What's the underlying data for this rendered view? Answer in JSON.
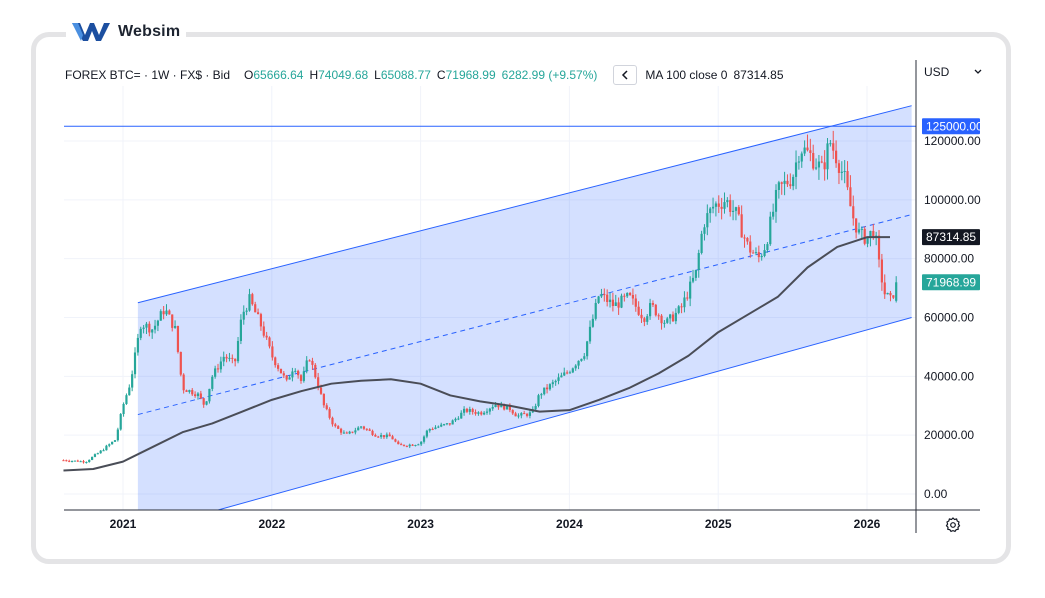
{
  "brand": {
    "name": "Websim",
    "logo_icon": "websim-w-logo-icon",
    "color": "#1c4fa0"
  },
  "legend": {
    "symbol": "FOREX BTC= · 1W · FX$ · Bid",
    "open_label": "O",
    "open": "65666.64",
    "high_label": "H",
    "high": "74049.68",
    "low_label": "L",
    "low": "65088.77",
    "close_label": "C",
    "close": "71968.99",
    "change": "6282.99 (+9.57%)",
    "collapse_icon": "chevron-left-icon",
    "ma_label": "MA 100 close 0",
    "ma_value": "87314.85"
  },
  "axis": {
    "currency": "USD",
    "currency_icon": "chevron-down-icon",
    "settings_icon": "gear-icon"
  },
  "colors": {
    "up": "#26a69a",
    "down": "#ef5350",
    "ma": "#4a4d57",
    "channel_line": "#2962ff",
    "channel_fill": "#2962ff",
    "hline": "#2962ff",
    "close_tag": "#26a69a",
    "ma_tag": "#131722",
    "hline_tag": "#2962ff"
  },
  "chart_data": {
    "type": "candlestick",
    "timeframe": "1W",
    "yaxis_ticks": [
      0,
      20000,
      40000,
      60000,
      80000,
      100000,
      120000
    ],
    "yaxis_tick_labels": [
      "0.00",
      "20000.00",
      "40000.00",
      "60000.00",
      "80000.00",
      "100000.00",
      "120000.00"
    ],
    "xaxis_ticks": [
      2021,
      2022,
      2023,
      2024,
      2025,
      2026
    ],
    "xaxis_tick_labels": [
      "2021",
      "2022",
      "2023",
      "2024",
      "2025",
      "2026"
    ],
    "ylim": [
      -5000,
      135000
    ],
    "xlim": [
      2020.6,
      2026.3
    ],
    "horizontal_line": {
      "value": 125000,
      "label": "125000.00"
    },
    "price_tags": [
      {
        "name": "ma",
        "value": 87314.85,
        "label": "87314.85"
      },
      {
        "name": "close",
        "value": 71968.99,
        "label": "71968.99"
      }
    ],
    "channel": {
      "upper": [
        [
          2021.1,
          65000
        ],
        [
          2026.3,
          132000
        ]
      ],
      "mid": [
        [
          2021.1,
          27000
        ],
        [
          2026.3,
          95000
        ]
      ],
      "lower": [
        [
          2021.1,
          -13000
        ],
        [
          2026.3,
          60000
        ]
      ]
    },
    "price_path": [
      [
        2020.6,
        11500
      ],
      [
        2020.75,
        11000
      ],
      [
        2020.85,
        14500
      ],
      [
        2020.95,
        18500
      ],
      [
        2021.0,
        30000
      ],
      [
        2021.05,
        38000
      ],
      [
        2021.12,
        58000
      ],
      [
        2021.2,
        56000
      ],
      [
        2021.28,
        63000
      ],
      [
        2021.35,
        56000
      ],
      [
        2021.4,
        36000
      ],
      [
        2021.5,
        34000
      ],
      [
        2021.55,
        30000
      ],
      [
        2021.6,
        40000
      ],
      [
        2021.68,
        47000
      ],
      [
        2021.75,
        44000
      ],
      [
        2021.8,
        61000
      ],
      [
        2021.85,
        66000
      ],
      [
        2021.93,
        57000
      ],
      [
        2022.0,
        47000
      ],
      [
        2022.1,
        38000
      ],
      [
        2022.15,
        44000
      ],
      [
        2022.2,
        38000
      ],
      [
        2022.25,
        47000
      ],
      [
        2022.3,
        39000
      ],
      [
        2022.35,
        30000
      ],
      [
        2022.42,
        23000
      ],
      [
        2022.5,
        20000
      ],
      [
        2022.6,
        23000
      ],
      [
        2022.7,
        20000
      ],
      [
        2022.8,
        19500
      ],
      [
        2022.85,
        16500
      ],
      [
        2022.95,
        16800
      ],
      [
        2023.0,
        17500
      ],
      [
        2023.05,
        22000
      ],
      [
        2023.2,
        24000
      ],
      [
        2023.3,
        28500
      ],
      [
        2023.4,
        27500
      ],
      [
        2023.5,
        30500
      ],
      [
        2023.6,
        29000
      ],
      [
        2023.65,
        26500
      ],
      [
        2023.75,
        27500
      ],
      [
        2023.8,
        34000
      ],
      [
        2023.9,
        38000
      ],
      [
        2024.0,
        42000
      ],
      [
        2024.1,
        48000
      ],
      [
        2024.2,
        68000
      ],
      [
        2024.3,
        64000
      ],
      [
        2024.4,
        67000
      ],
      [
        2024.5,
        60000
      ],
      [
        2024.55,
        64000
      ],
      [
        2024.65,
        58000
      ],
      [
        2024.75,
        63000
      ],
      [
        2024.85,
        75000
      ],
      [
        2024.9,
        92000
      ],
      [
        2024.97,
        98000
      ],
      [
        2025.05,
        100000
      ],
      [
        2025.12,
        95000
      ],
      [
        2025.2,
        84000
      ],
      [
        2025.27,
        80000
      ],
      [
        2025.32,
        85000
      ],
      [
        2025.4,
        103000
      ],
      [
        2025.5,
        108000
      ],
      [
        2025.55,
        118000
      ],
      [
        2025.62,
        115000
      ],
      [
        2025.7,
        110000
      ],
      [
        2025.75,
        120000
      ],
      [
        2025.8,
        114000
      ],
      [
        2025.85,
        107000
      ],
      [
        2025.9,
        95000
      ],
      [
        2025.95,
        88000
      ],
      [
        2026.0,
        87000
      ],
      [
        2026.05,
        90000
      ],
      [
        2026.08,
        78000
      ],
      [
        2026.12,
        68000
      ],
      [
        2026.16,
        65700
      ],
      [
        2026.2,
        71969
      ]
    ],
    "ma_path": [
      [
        2020.6,
        8000
      ],
      [
        2020.8,
        8500
      ],
      [
        2021.0,
        11000
      ],
      [
        2021.2,
        16000
      ],
      [
        2021.4,
        21000
      ],
      [
        2021.6,
        24000
      ],
      [
        2021.8,
        28000
      ],
      [
        2022.0,
        32000
      ],
      [
        2022.2,
        35000
      ],
      [
        2022.4,
        37500
      ],
      [
        2022.6,
        38500
      ],
      [
        2022.8,
        39000
      ],
      [
        2023.0,
        37500
      ],
      [
        2023.2,
        33500
      ],
      [
        2023.4,
        31500
      ],
      [
        2023.6,
        30000
      ],
      [
        2023.8,
        28000
      ],
      [
        2024.0,
        28500
      ],
      [
        2024.2,
        32000
      ],
      [
        2024.4,
        36000
      ],
      [
        2024.6,
        41000
      ],
      [
        2024.8,
        47000
      ],
      [
        2025.0,
        55000
      ],
      [
        2025.2,
        61000
      ],
      [
        2025.4,
        67000
      ],
      [
        2025.6,
        77000
      ],
      [
        2025.8,
        84000
      ],
      [
        2026.0,
        87314.85
      ],
      [
        2026.2,
        87314.85
      ]
    ],
    "last_candle": {
      "open": 65666.64,
      "high": 74049.68,
      "low": 65088.77,
      "close": 71968.99
    }
  }
}
